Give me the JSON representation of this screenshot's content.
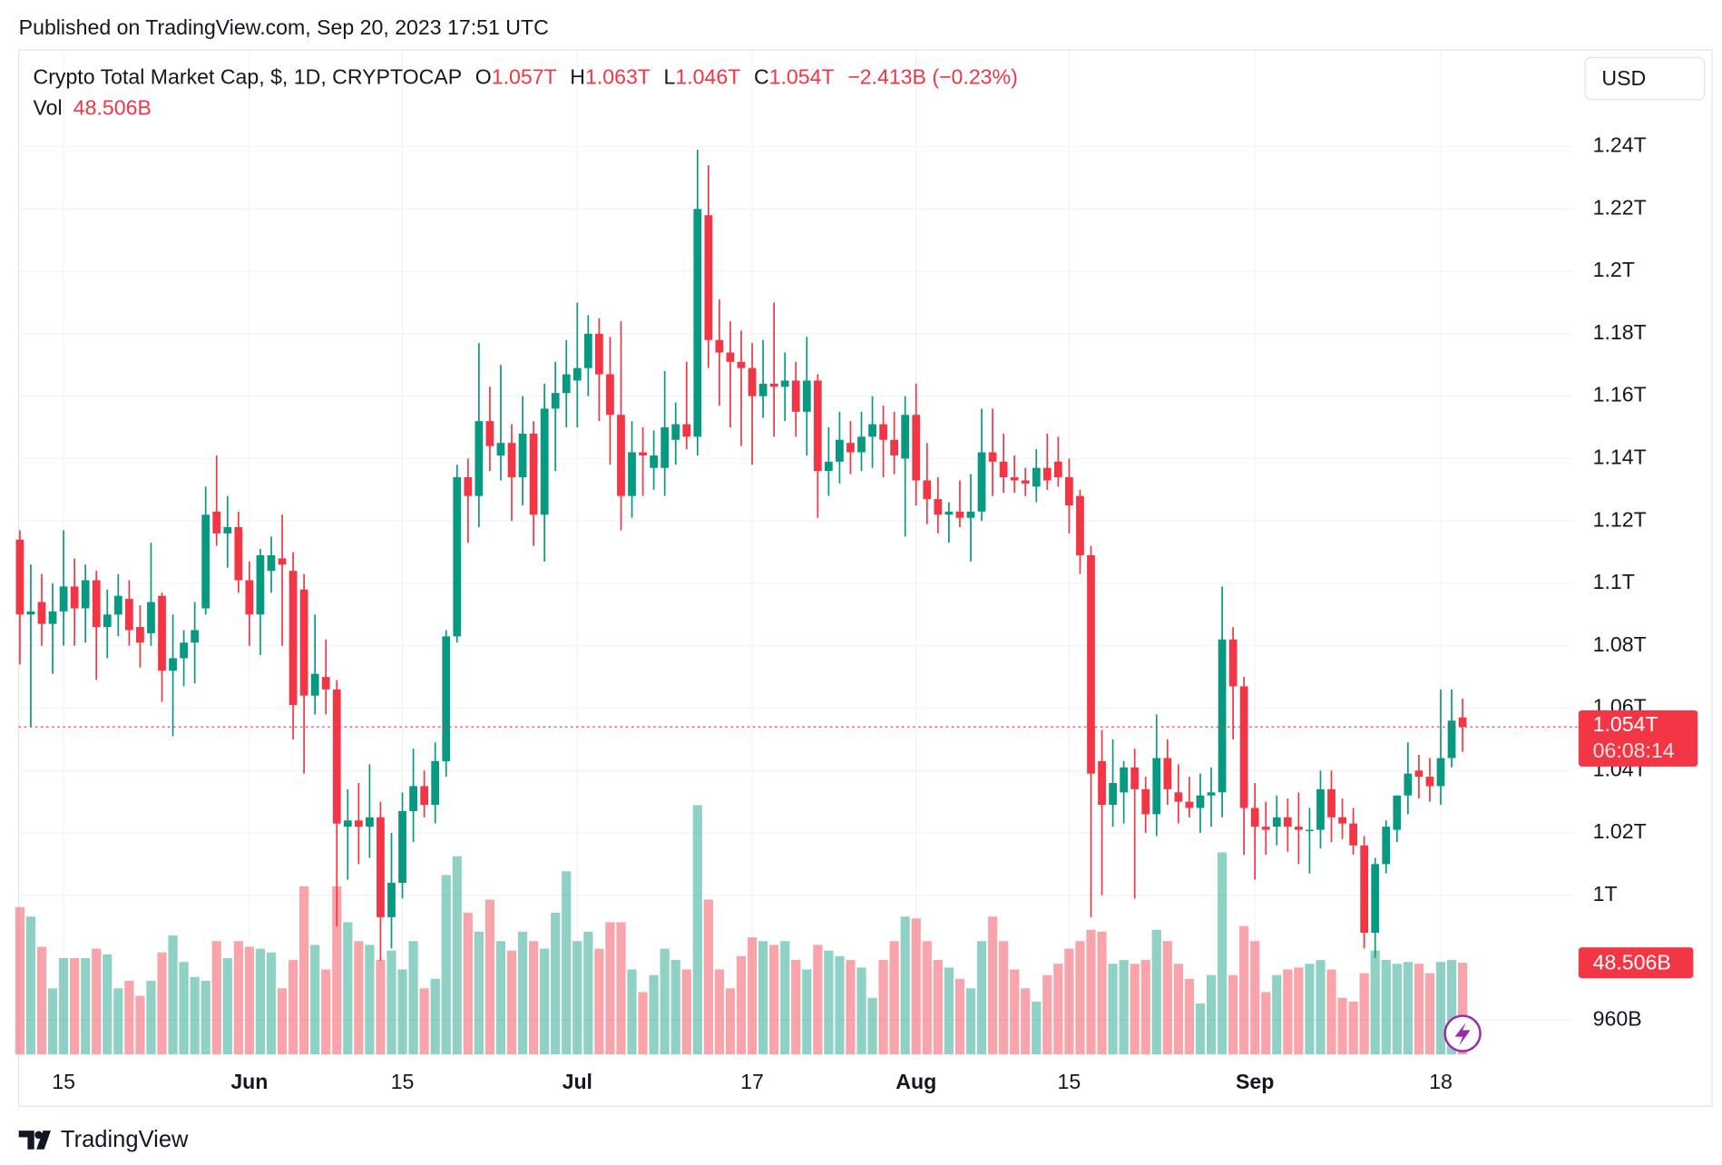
{
  "page": {
    "published": "Published on TradingView.com, Sep 20, 2023 17:51 UTC",
    "brand": "TradingView"
  },
  "chart_data": {
    "type": "candlestick",
    "title": "Crypto Total Market Cap, $, 1D, CRYPTOCAP",
    "ohlc_header": [
      {
        "label": "O",
        "value": "1.057T"
      },
      {
        "label": "H",
        "value": "1.063T"
      },
      {
        "label": "L",
        "value": "1.046T"
      },
      {
        "label": "C",
        "value": "1.054T"
      }
    ],
    "change": "−2.413B (−0.23%)",
    "volume_name": "Vol",
    "last_volume_label": "48.506B",
    "last_price_label": "1.054T",
    "countdown": "06:08:14",
    "currency": "USD",
    "up_color": "#089981",
    "down_color": "#f23645",
    "grid": true,
    "ylim": [
      0.949,
      1.271
    ],
    "yticks": [
      {
        "value": 0.96,
        "label": "960B"
      },
      {
        "value": 1,
        "label": "1T"
      },
      {
        "value": 1.02,
        "label": "1.02T"
      },
      {
        "value": 1.04,
        "label": "1.04T"
      },
      {
        "value": 1.06,
        "label": "1.06T"
      },
      {
        "value": 1.08,
        "label": "1.08T"
      },
      {
        "value": 1.1,
        "label": "1.1T"
      },
      {
        "value": 1.12,
        "label": "1.12T"
      },
      {
        "value": 1.14,
        "label": "1.14T"
      },
      {
        "value": 1.16,
        "label": "1.16T"
      },
      {
        "value": 1.18,
        "label": "1.18T"
      },
      {
        "value": 1.2,
        "label": "1.2T"
      },
      {
        "value": 1.22,
        "label": "1.22T"
      },
      {
        "value": 1.24,
        "label": "1.24T"
      }
    ],
    "y2lim": [
      0,
      532
    ],
    "categories": [
      null,
      null,
      null,
      null,
      "15",
      null,
      null,
      null,
      null,
      null,
      null,
      null,
      null,
      null,
      null,
      null,
      null,
      null,
      null,
      null,
      null,
      "Jun",
      null,
      null,
      null,
      null,
      null,
      null,
      null,
      null,
      null,
      null,
      null,
      null,
      null,
      "15",
      null,
      null,
      null,
      null,
      null,
      null,
      null,
      null,
      null,
      null,
      null,
      null,
      null,
      null,
      null,
      "Jul",
      null,
      null,
      null,
      null,
      null,
      null,
      null,
      null,
      null,
      null,
      null,
      null,
      null,
      null,
      null,
      "17",
      null,
      null,
      null,
      null,
      null,
      null,
      null,
      null,
      null,
      null,
      null,
      null,
      null,
      null,
      "Aug",
      null,
      null,
      null,
      null,
      null,
      null,
      null,
      null,
      null,
      null,
      null,
      null,
      null,
      "15",
      null,
      null,
      null,
      null,
      null,
      null,
      null,
      null,
      null,
      null,
      null,
      null,
      null,
      null,
      null,
      null,
      "Sep",
      null,
      null,
      null,
      null,
      null,
      null,
      null,
      null,
      null,
      null,
      null,
      null,
      null,
      null,
      null,
      null,
      "18",
      null,
      null
    ],
    "open": [
      1.114,
      1.09,
      1.094,
      1.087,
      1.091,
      1.099,
      1.092,
      1.101,
      1.086,
      1.09,
      1.095,
      1.086,
      1.084,
      1.096,
      1.072,
      1.076,
      1.081,
      1.092,
      1.123,
      1.116,
      1.118,
      1.101,
      1.09,
      1.104,
      1.108,
      1.104,
      1.098,
      1.064,
      1.07,
      1.066,
      1.022,
      1.024,
      1.022,
      1.025,
      0.993,
      1.004,
      1.027,
      1.035,
      1.029,
      1.043,
      1.083,
      1.134,
      1.128,
      1.152,
      1.141,
      1.145,
      1.134,
      1.148,
      1.122,
      1.156,
      1.161,
      1.165,
      1.169,
      1.18,
      1.167,
      1.154,
      1.128,
      1.142,
      1.137,
      1.137,
      1.146,
      1.151,
      1.147,
      1.218,
      1.178,
      1.174,
      1.171,
      1.169,
      1.16,
      1.164,
      1.163,
      1.165,
      1.155,
      1.165,
      1.136,
      1.139,
      1.145,
      1.142,
      1.147,
      1.151,
      1.146,
      1.14,
      1.154,
      1.133,
      1.127,
      1.122,
      1.123,
      1.121,
      1.123,
      1.142,
      1.139,
      1.134,
      1.133,
      1.131,
      1.137,
      1.139,
      1.134,
      1.128,
      1.109,
      1.043,
      1.029,
      1.033,
      1.041,
      1.034,
      1.026,
      1.044,
      1.033,
      1.03,
      1.028,
      1.032,
      1.033,
      1.082,
      1.067,
      1.028,
      1.022,
      1.022,
      1.025,
      1.022,
      1.021,
      1.021,
      1.034,
      1.025,
      1.023,
      1.016,
      0.988,
      1.01,
      1.021,
      1.032,
      1.04,
      1.038,
      1.035,
      1.044,
      1.057
    ],
    "high": [
      1.117,
      1.106,
      1.103,
      1.1,
      1.117,
      1.108,
      1.106,
      1.104,
      1.098,
      1.103,
      1.101,
      1.093,
      1.113,
      1.097,
      1.09,
      1.085,
      1.094,
      1.131,
      1.141,
      1.128,
      1.123,
      1.107,
      1.111,
      1.115,
      1.122,
      1.11,
      1.103,
      1.09,
      1.082,
      1.069,
      1.034,
      1.036,
      1.042,
      1.03,
      1.02,
      1.033,
      1.047,
      1.04,
      1.049,
      1.085,
      1.138,
      1.14,
      1.177,
      1.163,
      1.17,
      1.151,
      1.16,
      1.152,
      1.164,
      1.171,
      1.178,
      1.19,
      1.186,
      1.185,
      1.179,
      1.184,
      1.152,
      1.15,
      1.149,
      1.168,
      1.158,
      1.171,
      1.239,
      1.234,
      1.191,
      1.184,
      1.181,
      1.177,
      1.178,
      1.19,
      1.174,
      1.171,
      1.179,
      1.167,
      1.15,
      1.155,
      1.152,
      1.155,
      1.16,
      1.157,
      1.155,
      1.16,
      1.164,
      1.145,
      1.134,
      1.126,
      1.133,
      1.135,
      1.156,
      1.156,
      1.148,
      1.141,
      1.137,
      1.143,
      1.148,
      1.147,
      1.14,
      1.13,
      1.112,
      1.053,
      1.05,
      1.043,
      1.047,
      1.038,
      1.058,
      1.05,
      1.042,
      1.038,
      1.039,
      1.041,
      1.099,
      1.086,
      1.07,
      1.036,
      1.03,
      1.032,
      1.031,
      1.033,
      1.028,
      1.04,
      1.04,
      1.031,
      1.028,
      1.019,
      1.012,
      1.024,
      1.032,
      1.049,
      1.045,
      1.044,
      1.066,
      1.066,
      1.063
    ],
    "low": [
      1.074,
      1.054,
      1.08,
      1.071,
      1.08,
      1.08,
      1.081,
      1.069,
      1.076,
      1.083,
      1.08,
      1.073,
      1.08,
      1.062,
      1.051,
      1.067,
      1.068,
      1.09,
      1.112,
      1.105,
      1.097,
      1.08,
      1.077,
      1.097,
      1.08,
      1.05,
      1.039,
      1.058,
      1.058,
      0.99,
      1.005,
      1.01,
      1.012,
      0.979,
      0.983,
      0.999,
      1.017,
      1.025,
      1.023,
      1.038,
      1.081,
      1.113,
      1.118,
      1.136,
      1.133,
      1.12,
      1.125,
      1.112,
      1.107,
      1.136,
      1.15,
      1.15,
      1.16,
      1.152,
      1.138,
      1.117,
      1.121,
      1.128,
      1.13,
      1.128,
      1.138,
      1.143,
      1.141,
      1.169,
      1.157,
      1.15,
      1.144,
      1.138,
      1.153,
      1.147,
      1.152,
      1.147,
      1.141,
      1.121,
      1.128,
      1.132,
      1.135,
      1.136,
      1.137,
      1.134,
      1.135,
      1.115,
      1.125,
      1.119,
      1.116,
      1.113,
      1.118,
      1.107,
      1.12,
      1.128,
      1.129,
      1.129,
      1.128,
      1.126,
      1.13,
      1.131,
      1.116,
      1.103,
      0.993,
      1.0,
      1.022,
      1.023,
      0.999,
      1.02,
      1.019,
      1.029,
      1.023,
      1.025,
      1.02,
      1.022,
      1.025,
      1.05,
      1.013,
      1.005,
      1.013,
      1.016,
      1.014,
      1.01,
      1.007,
      1.015,
      1.017,
      1.018,
      1.013,
      0.983,
      0.98,
      1.007,
      1.017,
      1.026,
      1.031,
      1.03,
      1.029,
      1.041,
      1.046
    ],
    "close": [
      1.09,
      1.091,
      1.087,
      1.091,
      1.099,
      1.092,
      1.101,
      1.086,
      1.09,
      1.096,
      1.085,
      1.081,
      1.094,
      1.072,
      1.076,
      1.081,
      1.085,
      1.122,
      1.116,
      1.118,
      1.101,
      1.09,
      1.109,
      1.109,
      1.106,
      1.061,
      1.064,
      1.071,
      1.066,
      1.023,
      1.024,
      1.022,
      1.025,
      0.993,
      1.004,
      1.027,
      1.035,
      1.029,
      1.043,
      1.083,
      1.134,
      1.128,
      1.152,
      1.144,
      1.145,
      1.134,
      1.148,
      1.122,
      1.156,
      1.161,
      1.167,
      1.169,
      1.18,
      1.167,
      1.154,
      1.128,
      1.142,
      1.141,
      1.141,
      1.15,
      1.151,
      1.147,
      1.22,
      1.178,
      1.174,
      1.171,
      1.169,
      1.16,
      1.164,
      1.163,
      1.165,
      1.155,
      1.165,
      1.136,
      1.139,
      1.146,
      1.142,
      1.147,
      1.151,
      1.146,
      1.141,
      1.154,
      1.133,
      1.127,
      1.122,
      1.123,
      1.121,
      1.123,
      1.142,
      1.139,
      1.134,
      1.133,
      1.132,
      1.137,
      1.133,
      1.134,
      1.125,
      1.109,
      1.039,
      1.029,
      1.036,
      1.041,
      1.034,
      1.026,
      1.044,
      1.034,
      1.03,
      1.028,
      1.032,
      1.033,
      1.082,
      1.067,
      1.028,
      1.022,
      1.021,
      1.025,
      1.022,
      1.021,
      1.021,
      1.034,
      1.025,
      1.023,
      1.016,
      0.988,
      1.01,
      1.022,
      1.032,
      1.039,
      1.038,
      1.035,
      1.044,
      1.056,
      1.054
    ],
    "volume": {
      "axis": "y2",
      "values": [
        78,
        73,
        57,
        35,
        51,
        51,
        51,
        56,
        53,
        35,
        39,
        31,
        39,
        54,
        63,
        49,
        41,
        39,
        60,
        51,
        60,
        57,
        56,
        54,
        35,
        50,
        89,
        58,
        45,
        89,
        70,
        60,
        58,
        50,
        55,
        45,
        60,
        35,
        40,
        95,
        105,
        75,
        65,
        82,
        60,
        55,
        65,
        60,
        56,
        75,
        97,
        60,
        65,
        56,
        70,
        70,
        45,
        33,
        42,
        56,
        50,
        45,
        132,
        82,
        45,
        35,
        52,
        62,
        60,
        58,
        60,
        50,
        45,
        58,
        55,
        52,
        50,
        46,
        30,
        50,
        60,
        73,
        72,
        60,
        50,
        46,
        40,
        35,
        60,
        73,
        60,
        45,
        35,
        28,
        42,
        48,
        56,
        60,
        66,
        65,
        48,
        50,
        48,
        50,
        66,
        60,
        48,
        40,
        27,
        42,
        107,
        42,
        68,
        60,
        33,
        42,
        45,
        46,
        48,
        50,
        45,
        30,
        28,
        43,
        55,
        50,
        48,
        49,
        48,
        43,
        49,
        50,
        48.506
      ]
    }
  }
}
